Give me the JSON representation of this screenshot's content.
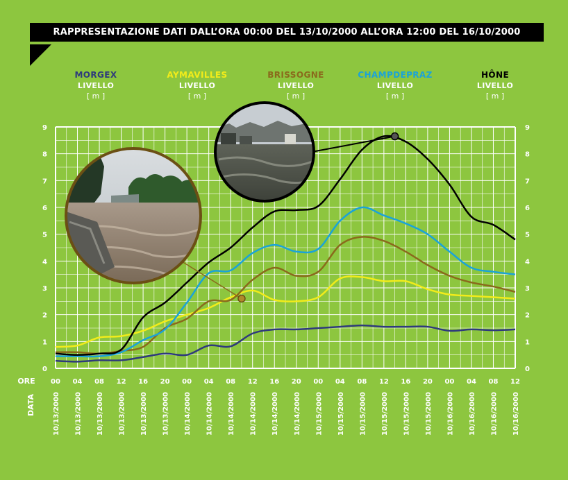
{
  "title": "RAPPRESENTAZIONE DATI DALL’ORA 00:00 DEL 13/10/2000 ALL’ORA 12:00 DEL 16/10/2000",
  "row_labels": {
    "hours": "ORE",
    "dates": "DATA"
  },
  "colors": {
    "background": "#8dc63f",
    "grid": "#ffffff",
    "MORGEX": "#2e3a7c",
    "AYMAVILLES": "#f2ec1a",
    "BRISSOGNE": "#8a6a1c",
    "CHAMPDEPRAZ": "#1aa3d9",
    "HÔNE": "#000000"
  },
  "chart_data": {
    "type": "line",
    "title": "RAPPRESENTAZIONE DATI DALL’ORA 00:00 DEL 13/10/2000 ALL’ORA 12:00 DEL 16/10/2000",
    "ylim": [
      0,
      9
    ],
    "y_ticks": [
      "0",
      "1",
      "2",
      "3",
      "4",
      "5",
      "6",
      "7",
      "8",
      "9"
    ],
    "x_hour_ticks": [
      "00",
      "04",
      "08",
      "12",
      "16",
      "20",
      "00",
      "04",
      "08",
      "12",
      "16",
      "20",
      "00",
      "04",
      "08",
      "12",
      "16",
      "20",
      "00",
      "04",
      "08",
      "12"
    ],
    "x_date_ticks": [
      "10/13/2000",
      "10/13/2000",
      "10/13/2000",
      "10/13/2000",
      "10/13/2000",
      "10/13/2000",
      "10/14/2000",
      "10/14/2000",
      "10/14/2000",
      "10/14/2000",
      "10/14/2000",
      "10/14/2000",
      "10/15/2000",
      "10/15/2000",
      "10/15/2000",
      "10/15/2000",
      "10/15/2000",
      "10/15/2000",
      "10/16/2000",
      "10/16/2000",
      "10/16/2000",
      "10/16/2000"
    ],
    "x_hours": [
      0,
      4,
      8,
      12,
      16,
      20,
      24,
      28,
      32,
      36,
      40,
      44,
      48,
      52,
      56,
      60,
      64,
      68,
      72,
      76,
      80,
      84
    ],
    "legend_placement": "top",
    "grid": true,
    "series": [
      {
        "name": "MORGEX",
        "variable": "LIVELLO",
        "unit": "[ m ]",
        "values": [
          0.28,
          0.25,
          0.3,
          0.3,
          0.42,
          0.55,
          0.5,
          0.85,
          0.82,
          1.3,
          1.45,
          1.45,
          1.5,
          1.55,
          1.6,
          1.55,
          1.55,
          1.55,
          1.4,
          1.45,
          1.42,
          1.45
        ]
      },
      {
        "name": "AYMAVILLES",
        "variable": "LIVELLO",
        "unit": "[ m ]",
        "values": [
          0.8,
          0.85,
          1.15,
          1.2,
          1.4,
          1.75,
          2.0,
          2.25,
          2.65,
          2.9,
          2.55,
          2.5,
          2.65,
          3.35,
          3.4,
          3.25,
          3.25,
          2.95,
          2.75,
          2.7,
          2.65,
          2.6
        ]
      },
      {
        "name": "BRISSOGNE",
        "variable": "LIVELLO",
        "unit": "[ m ]",
        "values": [
          0.6,
          0.6,
          0.55,
          0.65,
          0.8,
          1.5,
          1.85,
          2.5,
          2.55,
          3.3,
          3.75,
          3.45,
          3.6,
          4.6,
          4.9,
          4.75,
          4.35,
          3.85,
          3.45,
          3.2,
          3.05,
          2.85
        ]
      },
      {
        "name": "CHAMPDEPRAZ",
        "variable": "LIVELLO",
        "unit": "[ m ]",
        "values": [
          0.45,
          0.45,
          0.45,
          0.6,
          1.05,
          1.45,
          2.45,
          3.55,
          3.65,
          4.3,
          4.6,
          4.35,
          4.45,
          5.5,
          6.0,
          5.7,
          5.4,
          5.0,
          4.35,
          3.75,
          3.6,
          3.5
        ]
      },
      {
        "name": "HÔNE",
        "variable": "LIVELLO",
        "unit": "[ m ]",
        "values": [
          0.55,
          0.5,
          0.55,
          0.7,
          1.9,
          2.45,
          3.2,
          3.95,
          4.5,
          5.25,
          5.85,
          5.9,
          6.05,
          7.05,
          8.15,
          8.65,
          8.45,
          7.8,
          6.85,
          5.65,
          5.35,
          4.8
        ]
      }
    ],
    "markers": [
      {
        "series": "AYMAVILLES",
        "x": 34,
        "y": 2.6
      },
      {
        "series": "HÔNE",
        "x": 62,
        "y": 8.65
      }
    ]
  }
}
